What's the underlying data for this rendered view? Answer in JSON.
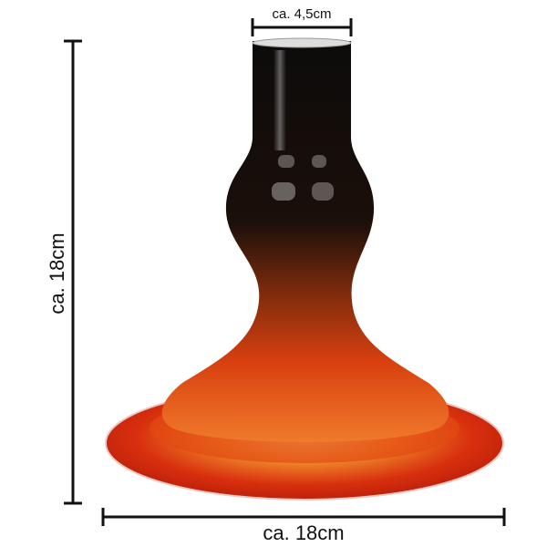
{
  "dimensions": {
    "opening": "ca. 4,5cm",
    "height": "ca. 18cm",
    "width": "ca. 18cm"
  }
}
